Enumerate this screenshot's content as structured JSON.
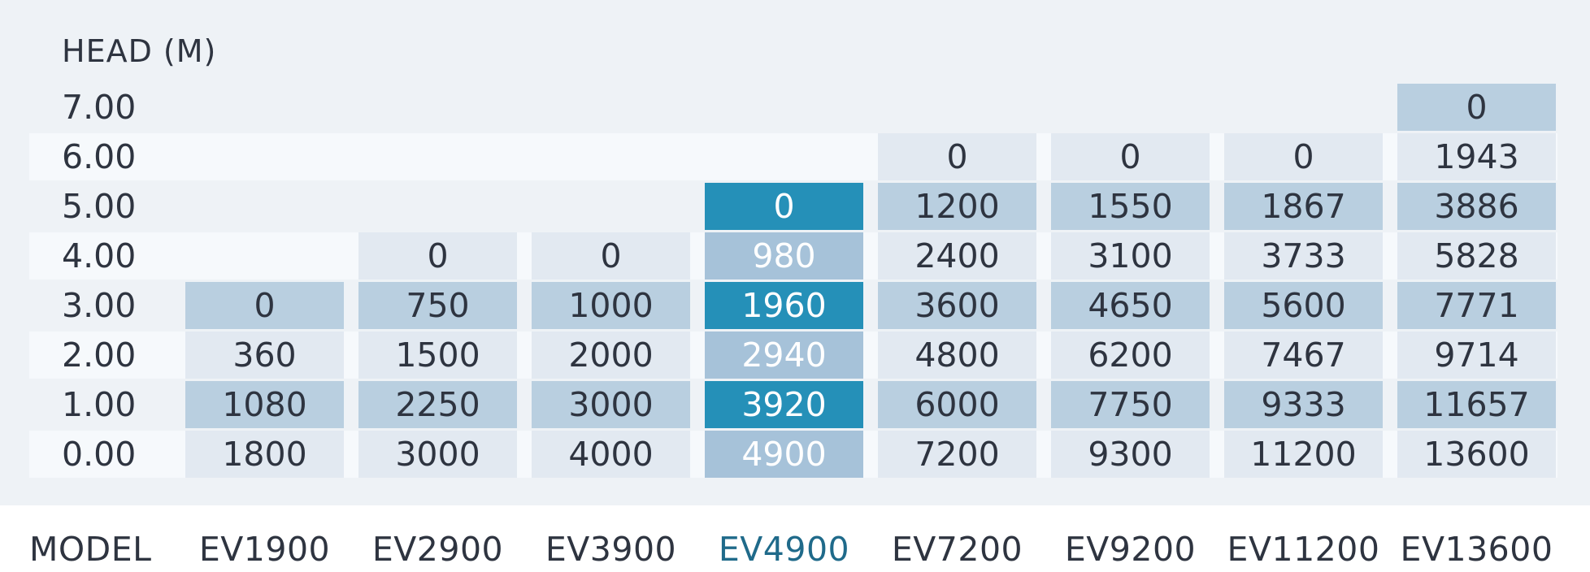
{
  "chart_data": {
    "type": "table",
    "title": "",
    "y_axis_label": "HEAD  (M)",
    "x_axis_label": "MODEL",
    "heads": [
      "7.00",
      "6.00",
      "5.00",
      "4.00",
      "3.00",
      "2.00",
      "1.00",
      "0.00"
    ],
    "models": [
      "EV1900",
      "EV2900",
      "EV3900",
      "EV4900",
      "EV7200",
      "EV9200",
      "EV11200",
      "EV13600"
    ],
    "highlighted_model": "EV4900",
    "values": [
      [
        null,
        null,
        null,
        null,
        null,
        null,
        null,
        "0"
      ],
      [
        null,
        null,
        null,
        null,
        "0",
        "0",
        "0",
        "1943"
      ],
      [
        null,
        null,
        null,
        "0",
        "1200",
        "1550",
        "1867",
        "3886"
      ],
      [
        null,
        "0",
        "0",
        "980",
        "2400",
        "3100",
        "3733",
        "5828"
      ],
      [
        "0",
        "750",
        "1000",
        "1960",
        "3600",
        "4650",
        "5600",
        "7771"
      ],
      [
        "360",
        "1500",
        "2000",
        "2940",
        "4800",
        "6200",
        "7467",
        "9714"
      ],
      [
        "1080",
        "2250",
        "3000",
        "3920",
        "6000",
        "7750",
        "9333",
        "11657"
      ],
      [
        "1800",
        "3000",
        "4000",
        "4900",
        "7200",
        "9300",
        "11200",
        "13600"
      ]
    ]
  },
  "colors": {
    "panel_bg": "#eef2f6",
    "stripe_light": "#f6f9fc",
    "cell_dark": "#b9cfe0",
    "cell_light": "#e2e9f1",
    "highlight_dark": "#2590b8",
    "highlight_light": "#a6c2d9",
    "highlight_text": "#ffffff",
    "highlight_model_text": "#1f6a8a",
    "text": "#2e3440"
  }
}
